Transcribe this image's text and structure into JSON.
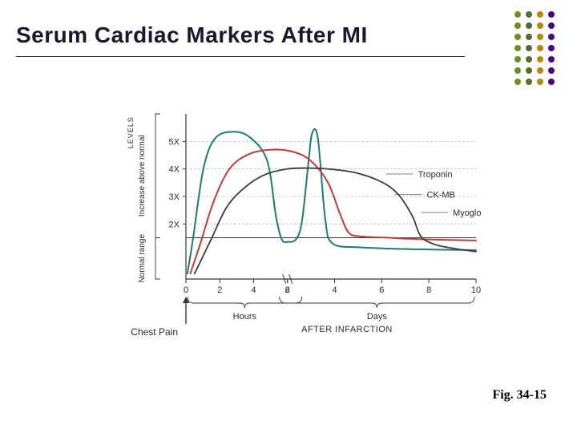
{
  "title": "Serum Cardiac Markers After MI",
  "figure_label": "Fig. 34-15",
  "dotgrid": {
    "rows": 7,
    "cols": 4,
    "col_colors": [
      "#6b8e23",
      "#556b2f",
      "#b8860b",
      "#4b0082"
    ]
  },
  "chart": {
    "type": "line",
    "background_color": "#ffffff",
    "axis_color": "#333333",
    "grid_color": "#bfbfbf",
    "grid_dash": "3,2",
    "x_domain": [
      0,
      10
    ],
    "y_domain": [
      0,
      6
    ],
    "y_ticks": [
      2,
      3,
      4,
      5
    ],
    "y_tick_labels": [
      "2X",
      "3X",
      "4X",
      "5X"
    ],
    "y_tick_fontsize": 11,
    "y_axis_rotated_label_top": "LEVELS",
    "y_axis_rotated_label_bottom": "Increase above normal",
    "normal_line_y": 1.5,
    "normal_range_label": "Normal range",
    "x_first_segment": {
      "label": "Hours",
      "ticks": [
        0,
        2,
        4,
        6
      ],
      "domain_end": 3.5
    },
    "x_second_segment": {
      "label": "Days",
      "ticks": [
        2,
        4,
        6,
        8,
        10
      ],
      "domain_start": 3.5
    },
    "x_tick_fontsize": 11,
    "after_infarction_label": "AFTER INFARCTION",
    "chest_pain_label": "Chest Pain",
    "series": [
      {
        "name": "Myoglobin",
        "color": "#1f7a6f",
        "width": 2,
        "label_xy": [
          9.2,
          2.3
        ],
        "points": [
          [
            0.05,
            0.2
          ],
          [
            0.25,
            1.5
          ],
          [
            0.6,
            4.0
          ],
          [
            1.0,
            5.1
          ],
          [
            1.6,
            5.35
          ],
          [
            2.2,
            5.15
          ],
          [
            2.8,
            4.3
          ],
          [
            3.1,
            2.3
          ],
          [
            3.3,
            1.45
          ],
          [
            3.5,
            1.35
          ],
          [
            3.8,
            1.45
          ],
          [
            4.0,
            2.1
          ],
          [
            4.22,
            4.2
          ],
          [
            4.35,
            5.3
          ],
          [
            4.55,
            5.1
          ],
          [
            4.8,
            2.2
          ],
          [
            5.05,
            1.3
          ],
          [
            6.0,
            1.15
          ],
          [
            8.0,
            1.08
          ],
          [
            10.0,
            1.05
          ]
        ]
      },
      {
        "name": "CK-MB",
        "color": "#c23b3b",
        "width": 2,
        "label_xy": [
          8.3,
          2.95
        ],
        "points": [
          [
            0.15,
            0.2
          ],
          [
            0.5,
            1.3
          ],
          [
            0.95,
            2.8
          ],
          [
            1.5,
            4.0
          ],
          [
            2.2,
            4.55
          ],
          [
            3.0,
            4.7
          ],
          [
            3.7,
            4.62
          ],
          [
            4.3,
            4.3
          ],
          [
            4.9,
            3.5
          ],
          [
            5.3,
            2.4
          ],
          [
            5.6,
            1.7
          ],
          [
            6.0,
            1.55
          ],
          [
            7.0,
            1.5
          ],
          [
            8.0,
            1.45
          ],
          [
            10.0,
            1.4
          ]
        ]
      },
      {
        "name": "Troponin",
        "color": "#3a3a3a",
        "width": 1.8,
        "label_xy": [
          8.0,
          3.7
        ],
        "points": [
          [
            0.3,
            0.2
          ],
          [
            0.85,
            1.4
          ],
          [
            1.4,
            2.6
          ],
          [
            2.0,
            3.3
          ],
          [
            2.7,
            3.78
          ],
          [
            3.5,
            4.0
          ],
          [
            4.3,
            4.03
          ],
          [
            5.1,
            3.98
          ],
          [
            5.9,
            3.85
          ],
          [
            6.7,
            3.55
          ],
          [
            7.3,
            3.1
          ],
          [
            7.8,
            2.3
          ],
          [
            8.1,
            1.55
          ],
          [
            8.6,
            1.25
          ],
          [
            9.3,
            1.1
          ],
          [
            10.0,
            1.0
          ]
        ]
      }
    ]
  }
}
